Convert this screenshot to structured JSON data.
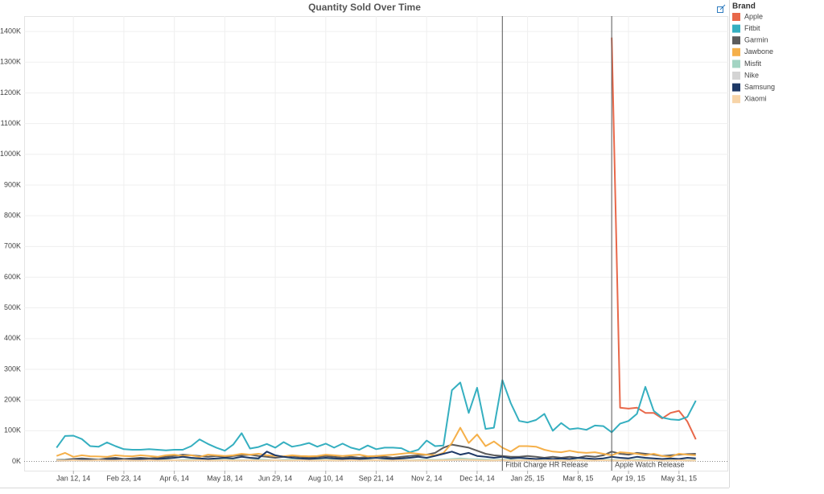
{
  "chart_data": {
    "type": "line",
    "title": "Quantity Sold Over Time",
    "legend_title": "Brand",
    "legend": "right",
    "grid": true,
    "x": [
      "2013-12-29",
      "2014-01-05",
      "2014-01-12",
      "2014-01-19",
      "2014-01-26",
      "2014-02-02",
      "2014-02-09",
      "2014-02-16",
      "2014-02-23",
      "2014-03-02",
      "2014-03-09",
      "2014-03-16",
      "2014-03-23",
      "2014-03-30",
      "2014-04-06",
      "2014-04-13",
      "2014-04-20",
      "2014-04-27",
      "2014-05-04",
      "2014-05-11",
      "2014-05-18",
      "2014-05-25",
      "2014-06-01",
      "2014-06-08",
      "2014-06-15",
      "2014-06-22",
      "2014-06-29",
      "2014-07-06",
      "2014-07-13",
      "2014-07-20",
      "2014-07-27",
      "2014-08-03",
      "2014-08-10",
      "2014-08-17",
      "2014-08-24",
      "2014-08-31",
      "2014-09-07",
      "2014-09-14",
      "2014-09-21",
      "2014-09-28",
      "2014-10-05",
      "2014-10-12",
      "2014-10-19",
      "2014-10-26",
      "2014-11-02",
      "2014-11-09",
      "2014-11-16",
      "2014-11-23",
      "2014-11-30",
      "2014-12-07",
      "2014-12-14",
      "2014-12-21",
      "2014-12-28",
      "2015-01-04",
      "2015-01-11",
      "2015-01-18",
      "2015-01-25",
      "2015-02-01",
      "2015-02-08",
      "2015-02-15",
      "2015-02-22",
      "2015-03-01",
      "2015-03-08",
      "2015-03-15",
      "2015-03-22",
      "2015-03-29",
      "2015-04-05",
      "2015-04-12",
      "2015-04-19",
      "2015-04-26",
      "2015-05-03",
      "2015-05-10",
      "2015-05-17",
      "2015-05-24",
      "2015-05-31",
      "2015-06-07",
      "2015-06-14"
    ],
    "xlim": [
      "2013-12-02",
      "2015-07-11"
    ],
    "xticks": [
      {
        "value": "2014-01-12",
        "label": "Jan 12, 14"
      },
      {
        "value": "2014-02-23",
        "label": "Feb 23, 14"
      },
      {
        "value": "2014-04-06",
        "label": "Apr 6, 14"
      },
      {
        "value": "2014-05-18",
        "label": "May 18, 14"
      },
      {
        "value": "2014-06-29",
        "label": "Jun 29, 14"
      },
      {
        "value": "2014-08-10",
        "label": "Aug 10, 14"
      },
      {
        "value": "2014-09-21",
        "label": "Sep 21, 14"
      },
      {
        "value": "2014-11-02",
        "label": "Nov 2, 14"
      },
      {
        "value": "2014-12-14",
        "label": "Dec 14, 14"
      },
      {
        "value": "2015-01-25",
        "label": "Jan 25, 15"
      },
      {
        "value": "2015-03-08",
        "label": "Mar 8, 15"
      },
      {
        "value": "2015-04-19",
        "label": "Apr 19, 15"
      },
      {
        "value": "2015-05-31",
        "label": "May 31, 15"
      }
    ],
    "ylim": [
      -30000,
      1450000
    ],
    "yticks": [
      {
        "value": 0,
        "label": "0K"
      },
      {
        "value": 100000,
        "label": "100K"
      },
      {
        "value": 200000,
        "label": "200K"
      },
      {
        "value": 300000,
        "label": "300K"
      },
      {
        "value": 400000,
        "label": "400K"
      },
      {
        "value": 500000,
        "label": "500K"
      },
      {
        "value": 600000,
        "label": "600K"
      },
      {
        "value": 700000,
        "label": "700K"
      },
      {
        "value": 800000,
        "label": "800K"
      },
      {
        "value": 900000,
        "label": "900K"
      },
      {
        "value": 1000000,
        "label": "1000K"
      },
      {
        "value": 1100000,
        "label": "1100K"
      },
      {
        "value": 1200000,
        "label": "1200K"
      },
      {
        "value": 1300000,
        "label": "1300K"
      },
      {
        "value": 1400000,
        "label": "1400K"
      }
    ],
    "annotations": [
      {
        "x": "2015-01-04",
        "label": "Fitbit Charge HR Release"
      },
      {
        "x": "2015-04-05",
        "label": "Apple Watch Release"
      }
    ],
    "series": [
      {
        "name": "Apple",
        "color": "#e8684a",
        "values": [
          null,
          null,
          null,
          null,
          null,
          null,
          null,
          null,
          null,
          null,
          null,
          null,
          null,
          null,
          null,
          null,
          null,
          null,
          null,
          null,
          null,
          null,
          null,
          null,
          null,
          null,
          null,
          null,
          null,
          null,
          null,
          null,
          null,
          null,
          null,
          null,
          null,
          null,
          null,
          null,
          null,
          null,
          null,
          null,
          null,
          null,
          null,
          null,
          null,
          null,
          null,
          null,
          null,
          null,
          null,
          null,
          null,
          null,
          null,
          null,
          null,
          null,
          null,
          null,
          null,
          null,
          1380000,
          175000,
          172000,
          175000,
          158000,
          158000,
          140000,
          158000,
          165000,
          130000,
          72000
        ]
      },
      {
        "name": "Fitbit",
        "color": "#35afc0",
        "values": [
          45000,
          83000,
          84000,
          73000,
          50000,
          48000,
          62000,
          50000,
          40000,
          38000,
          38000,
          40000,
          38000,
          36000,
          38000,
          38000,
          50000,
          72000,
          57000,
          45000,
          35000,
          55000,
          92000,
          42000,
          47000,
          57000,
          45000,
          63000,
          48000,
          53000,
          60000,
          48000,
          58000,
          45000,
          58000,
          45000,
          38000,
          52000,
          40000,
          45000,
          45000,
          43000,
          30000,
          38000,
          68000,
          50000,
          52000,
          232000,
          257000,
          158000,
          240000,
          106000,
          110000,
          265000,
          190000,
          132000,
          127000,
          135000,
          155000,
          100000,
          125000,
          105000,
          108000,
          103000,
          117000,
          115000,
          95000,
          123000,
          132000,
          155000,
          243000,
          165000,
          143000,
          137000,
          135000,
          145000,
          198000
        ]
      },
      {
        "name": "Garmin",
        "color": "#5c5c5c",
        "values": [
          5000,
          6000,
          8000,
          10000,
          8000,
          6000,
          10000,
          12000,
          8000,
          10000,
          12000,
          10000,
          12000,
          15000,
          18000,
          22000,
          20000,
          18000,
          15000,
          18000,
          15000,
          18000,
          20000,
          22000,
          18000,
          15000,
          12000,
          15000,
          18000,
          15000,
          12000,
          15000,
          18000,
          15000,
          12000,
          15000,
          12000,
          15000,
          18000,
          15000,
          12000,
          15000,
          18000,
          20000,
          22000,
          28000,
          45000,
          55000,
          50000,
          45000,
          35000,
          25000,
          20000,
          18000,
          15000,
          15000,
          18000,
          15000,
          12000,
          15000,
          12000,
          15000,
          12000,
          18000,
          15000,
          20000,
          32000,
          25000,
          22000,
          28000,
          25000,
          22000,
          18000,
          20000,
          22000,
          24000,
          25000
        ]
      },
      {
        "name": "Jawbone",
        "color": "#f5b04a",
        "values": [
          18000,
          28000,
          15000,
          20000,
          17000,
          16000,
          15000,
          20000,
          18000,
          17000,
          20000,
          18000,
          15000,
          20000,
          22000,
          18000,
          20000,
          15000,
          22000,
          20000,
          18000,
          20000,
          25000,
          22000,
          25000,
          20000,
          18000,
          17000,
          20000,
          18000,
          17000,
          18000,
          22000,
          20000,
          18000,
          20000,
          22000,
          17000,
          18000,
          20000,
          22000,
          25000,
          28000,
          25000,
          22000,
          20000,
          28000,
          60000,
          110000,
          60000,
          88000,
          50000,
          65000,
          45000,
          32000,
          50000,
          50000,
          48000,
          38000,
          32000,
          30000,
          35000,
          30000,
          28000,
          30000,
          25000,
          20000,
          30000,
          28000,
          25000,
          20000,
          25000,
          18000,
          15000,
          25000,
          22000,
          20000
        ]
      },
      {
        "name": "Misfit",
        "color": "#a3d4c3",
        "values": [
          4000,
          5000,
          4000,
          6000,
          5000,
          4000,
          5000,
          6000,
          4000,
          5000,
          4000,
          5000,
          6000,
          5000,
          4000,
          5000,
          6000,
          5000,
          4000,
          5000,
          6000,
          5000,
          4000,
          5000,
          6000,
          5000,
          4000,
          5000,
          6000,
          5000,
          4000,
          5000,
          6000,
          5000,
          4000,
          5000,
          6000,
          5000,
          4000,
          5000,
          6000,
          5000,
          4000,
          5000,
          6000,
          5000,
          6000,
          8000,
          10000,
          8000,
          7000,
          6000,
          5000,
          6000,
          5000,
          4000,
          5000,
          6000,
          5000,
          4000,
          5000,
          6000,
          5000,
          4000,
          5000,
          6000,
          5000,
          4000,
          5000,
          6000,
          5000,
          4000,
          5000,
          6000,
          5000,
          4000,
          5000
        ]
      },
      {
        "name": "Nike",
        "color": "#d4d4d4",
        "values": [
          2000,
          2000,
          3000,
          2000,
          2000,
          3000,
          2000,
          2000,
          3000,
          2000,
          2000,
          3000,
          2000,
          2000,
          3000,
          2000,
          2000,
          3000,
          2000,
          2000,
          3000,
          2000,
          2000,
          3000,
          2000,
          2000,
          3000,
          2000,
          2000,
          3000,
          2000,
          2000,
          3000,
          2000,
          2000,
          3000,
          2000,
          2000,
          3000,
          2000,
          2000,
          3000,
          2000,
          2000,
          3000,
          2000,
          3000,
          4000,
          4000,
          3000,
          3000,
          2000,
          2000,
          3000,
          2000,
          2000,
          3000,
          2000,
          2000,
          3000,
          2000,
          2000,
          3000,
          2000,
          2000,
          3000,
          2000,
          2000,
          3000,
          2000,
          2000,
          3000,
          2000,
          2000,
          3000,
          2000,
          2000
        ]
      },
      {
        "name": "Samsung",
        "color": "#1e3966",
        "values": [
          3000,
          4000,
          5000,
          6000,
          5000,
          4000,
          6000,
          8000,
          5000,
          6000,
          8000,
          6000,
          8000,
          10000,
          12000,
          15000,
          12000,
          10000,
          8000,
          10000,
          12000,
          10000,
          15000,
          12000,
          10000,
          32000,
          20000,
          15000,
          12000,
          10000,
          8000,
          10000,
          12000,
          10000,
          8000,
          10000,
          8000,
          10000,
          12000,
          10000,
          8000,
          10000,
          12000,
          15000,
          12000,
          18000,
          25000,
          32000,
          22000,
          28000,
          18000,
          15000,
          12000,
          15000,
          10000,
          12000,
          10000,
          8000,
          10000,
          8000,
          10000,
          8000,
          12000,
          10000,
          8000,
          10000,
          15000,
          12000,
          10000,
          15000,
          12000,
          10000,
          8000,
          10000,
          8000,
          12000,
          10000
        ]
      },
      {
        "name": "Xiaomi",
        "color": "#f7d4a8",
        "values": [
          3000,
          3000,
          4000,
          3000,
          3000,
          4000,
          3000,
          3000,
          4000,
          3000,
          3000,
          4000,
          3000,
          3000,
          4000,
          3000,
          3000,
          4000,
          3000,
          3000,
          4000,
          3000,
          3000,
          4000,
          3000,
          3000,
          4000,
          3000,
          3000,
          4000,
          3000,
          3000,
          4000,
          3000,
          3000,
          4000,
          3000,
          3000,
          4000,
          3000,
          3000,
          4000,
          3000,
          3000,
          4000,
          3000,
          4000,
          5000,
          6000,
          5000,
          4000,
          3000,
          3000,
          4000,
          3000,
          3000,
          4000,
          3000,
          3000,
          4000,
          3000,
          3000,
          4000,
          3000,
          3000,
          4000,
          3000,
          3000,
          4000,
          3000,
          3000,
          4000,
          3000,
          3000,
          4000,
          3000,
          3000
        ]
      }
    ]
  }
}
